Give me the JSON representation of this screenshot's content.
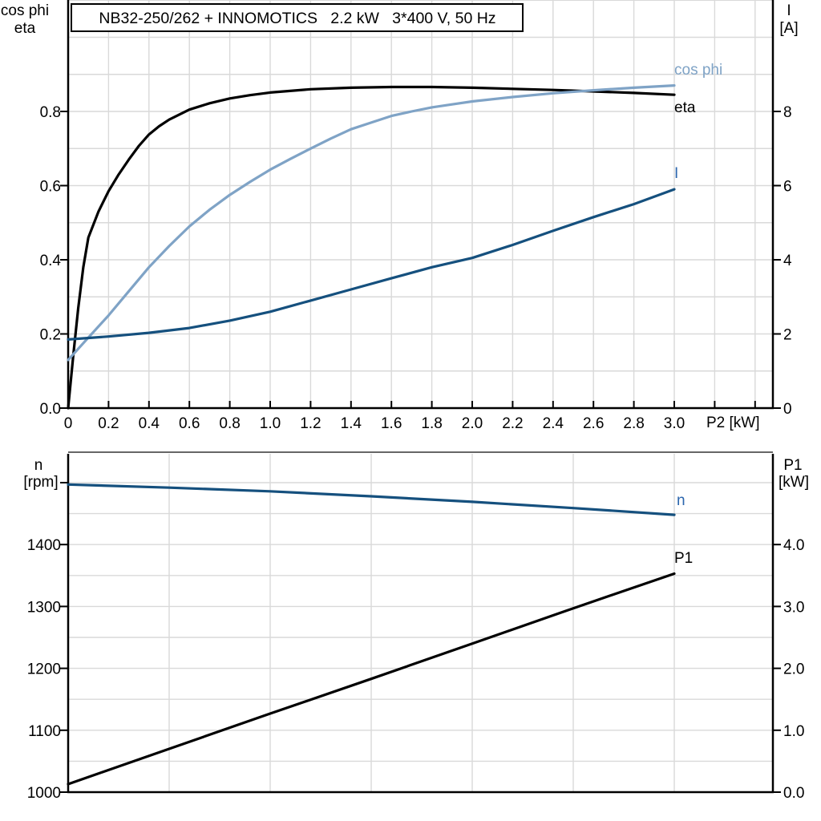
{
  "title": "NB32-250/262 + INNOMOTICS   2.2 kW   3*400 V, 50 Hz",
  "colors": {
    "black_curve": "#000000",
    "cosphi_curve": "#7FA3C6",
    "navy_curve": "#15507E",
    "blue_label": "#2B66AE",
    "grid": "#D9D9D9",
    "spine": "#000000",
    "panel_divider": "#666666"
  },
  "chart_data": [
    {
      "type": "line",
      "panel": "top",
      "xlabel": "P2 [kW]",
      "x_range": [
        0,
        3.49
      ],
      "x_grid_step": 0.2,
      "x_ticks": [
        {
          "v": 0,
          "label": "0"
        },
        {
          "v": 0.2,
          "label": "0.2"
        },
        {
          "v": 0.4,
          "label": "0.4"
        },
        {
          "v": 0.6,
          "label": "0.6"
        },
        {
          "v": 0.8,
          "label": "0.8"
        },
        {
          "v": 1.0,
          "label": "1.0"
        },
        {
          "v": 1.2,
          "label": "1.2"
        },
        {
          "v": 1.4,
          "label": "1.4"
        },
        {
          "v": 1.6,
          "label": "1.6"
        },
        {
          "v": 1.8,
          "label": "1.8"
        },
        {
          "v": 2.0,
          "label": "2.0"
        },
        {
          "v": 2.2,
          "label": "2.2"
        },
        {
          "v": 2.4,
          "label": "2.4"
        },
        {
          "v": 2.6,
          "label": "2.6"
        },
        {
          "v": 2.8,
          "label": "2.8"
        },
        {
          "v": 3.0,
          "label": "3.0"
        },
        {
          "v": 3.2,
          "label": ""
        },
        {
          "v": 3.4,
          "label": ""
        }
      ],
      "left_axis": {
        "header_lines": [
          "cos phi",
          "eta"
        ],
        "range": [
          0,
          1.1
        ],
        "grid_step": 0.1,
        "ticks": [
          {
            "v": 0.0,
            "label": "0.0"
          },
          {
            "v": 0.2,
            "label": "0.2"
          },
          {
            "v": 0.4,
            "label": "0.4"
          },
          {
            "v": 0.6,
            "label": "0.6"
          },
          {
            "v": 0.8,
            "label": "0.8"
          }
        ]
      },
      "right_axis": {
        "header_lines": [
          "I",
          "[A]"
        ],
        "range": [
          0,
          11
        ],
        "ticks": [
          {
            "v": 0,
            "label": "0"
          },
          {
            "v": 2,
            "label": "2"
          },
          {
            "v": 4,
            "label": "4"
          },
          {
            "v": 6,
            "label": "6"
          },
          {
            "v": 8,
            "label": "8"
          }
        ]
      },
      "series": [
        {
          "name": "eta",
          "curve_label": "eta",
          "axis": "left",
          "color_key": "black_curve",
          "label_color_key": "black_curve",
          "points": [
            [
              0,
              0
            ],
            [
              0.025,
              0.14
            ],
            [
              0.05,
              0.27
            ],
            [
              0.075,
              0.38
            ],
            [
              0.1,
              0.46
            ],
            [
              0.15,
              0.53
            ],
            [
              0.2,
              0.585
            ],
            [
              0.25,
              0.63
            ],
            [
              0.3,
              0.67
            ],
            [
              0.35,
              0.707
            ],
            [
              0.4,
              0.738
            ],
            [
              0.45,
              0.76
            ],
            [
              0.5,
              0.778
            ],
            [
              0.6,
              0.805
            ],
            [
              0.7,
              0.822
            ],
            [
              0.8,
              0.835
            ],
            [
              0.9,
              0.844
            ],
            [
              1.0,
              0.851
            ],
            [
              1.2,
              0.86
            ],
            [
              1.4,
              0.864
            ],
            [
              1.6,
              0.866
            ],
            [
              1.8,
              0.866
            ],
            [
              2.0,
              0.864
            ],
            [
              2.2,
              0.861
            ],
            [
              2.4,
              0.858
            ],
            [
              2.6,
              0.854
            ],
            [
              2.8,
              0.85
            ],
            [
              3.0,
              0.845
            ]
          ]
        },
        {
          "name": "cos phi",
          "curve_label": "cos phi",
          "axis": "left",
          "color_key": "cosphi_curve",
          "label_color_key": "cosphi_curve",
          "points": [
            [
              0,
              0.13
            ],
            [
              0.1,
              0.19
            ],
            [
              0.2,
              0.25
            ],
            [
              0.3,
              0.315
            ],
            [
              0.4,
              0.38
            ],
            [
              0.5,
              0.437
            ],
            [
              0.6,
              0.49
            ],
            [
              0.7,
              0.535
            ],
            [
              0.8,
              0.575
            ],
            [
              0.9,
              0.61
            ],
            [
              1.0,
              0.643
            ],
            [
              1.1,
              0.672
            ],
            [
              1.2,
              0.7
            ],
            [
              1.3,
              0.727
            ],
            [
              1.4,
              0.752
            ],
            [
              1.5,
              0.77
            ],
            [
              1.6,
              0.788
            ],
            [
              1.7,
              0.8
            ],
            [
              1.8,
              0.811
            ],
            [
              1.9,
              0.819
            ],
            [
              2.0,
              0.827
            ],
            [
              2.2,
              0.839
            ],
            [
              2.4,
              0.849
            ],
            [
              2.6,
              0.857
            ],
            [
              2.8,
              0.864
            ],
            [
              3.0,
              0.87
            ]
          ]
        },
        {
          "name": "I",
          "curve_label": "I",
          "axis": "right",
          "color_key": "navy_curve",
          "label_color_key": "blue_label",
          "points": [
            [
              0,
              1.85
            ],
            [
              0.2,
              1.93
            ],
            [
              0.4,
              2.03
            ],
            [
              0.6,
              2.16
            ],
            [
              0.8,
              2.36
            ],
            [
              1.0,
              2.6
            ],
            [
              1.2,
              2.9
            ],
            [
              1.4,
              3.2
            ],
            [
              1.6,
              3.5
            ],
            [
              1.8,
              3.8
            ],
            [
              2.0,
              4.05
            ],
            [
              2.2,
              4.4
            ],
            [
              2.4,
              4.78
            ],
            [
              2.6,
              5.15
            ],
            [
              2.8,
              5.5
            ],
            [
              3.0,
              5.9
            ]
          ]
        }
      ]
    },
    {
      "type": "line",
      "panel": "bottom",
      "xlabel": "",
      "x_range": [
        0,
        3.49
      ],
      "x_grid_step": 0.5,
      "x_ticks": [],
      "left_axis": {
        "header_lines": [
          "n",
          "[rpm]"
        ],
        "range": [
          1000,
          1546
        ],
        "grid_step": 50,
        "ticks": [
          {
            "v": 1000,
            "label": "1000"
          },
          {
            "v": 1100,
            "label": "1100"
          },
          {
            "v": 1200,
            "label": "1200"
          },
          {
            "v": 1300,
            "label": "1300"
          },
          {
            "v": 1400,
            "label": "1400"
          },
          {
            "v": 1500,
            "label": ""
          }
        ]
      },
      "right_axis": {
        "header_lines": [
          "P1",
          "[kW]"
        ],
        "range": [
          0,
          5.46
        ],
        "ticks": [
          {
            "v": 0.0,
            "label": "0.0"
          },
          {
            "v": 1.0,
            "label": "1.0"
          },
          {
            "v": 2.0,
            "label": "2.0"
          },
          {
            "v": 3.0,
            "label": "3.0"
          },
          {
            "v": 4.0,
            "label": "4.0"
          }
        ]
      },
      "series": [
        {
          "name": "n",
          "curve_label": "n",
          "axis": "left",
          "color_key": "navy_curve",
          "label_color_key": "blue_label",
          "points": [
            [
              0,
              1497
            ],
            [
              0.5,
              1492
            ],
            [
              1.0,
              1486
            ],
            [
              1.5,
              1478
            ],
            [
              2.0,
              1469
            ],
            [
              2.5,
              1459
            ],
            [
              3.0,
              1448
            ]
          ]
        },
        {
          "name": "P1",
          "curve_label": "P1",
          "axis": "right",
          "color_key": "black_curve",
          "label_color_key": "black_curve",
          "points": [
            [
              0,
              0.13
            ],
            [
              0.5,
              0.7
            ],
            [
              1.0,
              1.27
            ],
            [
              1.5,
              1.83
            ],
            [
              2.0,
              2.4
            ],
            [
              2.5,
              2.97
            ],
            [
              3.0,
              3.53
            ]
          ]
        }
      ]
    }
  ]
}
